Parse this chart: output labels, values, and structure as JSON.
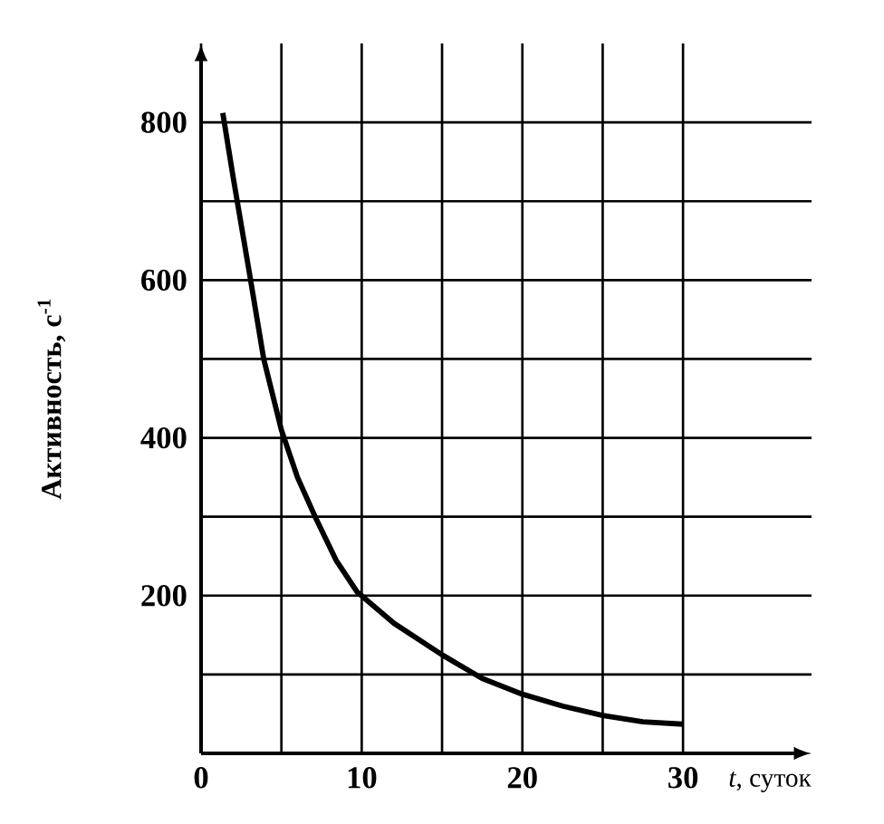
{
  "chart_data": {
    "type": "line",
    "xlabel": "*t*, суток",
    "ylabel": "Активность, с$^{-1}$",
    "xlim": [
      0,
      38
    ],
    "ylim": [
      0,
      900
    ],
    "xticks": [
      0,
      {
        "value": 5,
        "label": null
      },
      10,
      {
        "value": 15,
        "label": null
      },
      20,
      {
        "value": 25,
        "label": null
      },
      30
    ],
    "yticks": [
      {
        "value": 100,
        "label": null
      },
      200,
      {
        "value": 300,
        "label": null
      },
      400,
      {
        "value": 500,
        "label": null
      },
      600,
      {
        "value": 700,
        "label": null
      },
      800
    ],
    "grid": true,
    "marker": "none",
    "line_style": "solid",
    "series": [
      {
        "color": "#000000",
        "x": [
          1.35,
          2,
          2.5,
          3,
          3.9,
          5,
          6,
          7.1,
          8.4,
          9.7,
          12,
          15,
          17.5,
          20,
          22.5,
          25,
          27.5,
          30
        ],
        "values": [
          812,
          730,
          670,
          610,
          500,
          410,
          350,
          300,
          245,
          205,
          165,
          125,
          95,
          75,
          60,
          48,
          40,
          37
        ]
      }
    ]
  }
}
